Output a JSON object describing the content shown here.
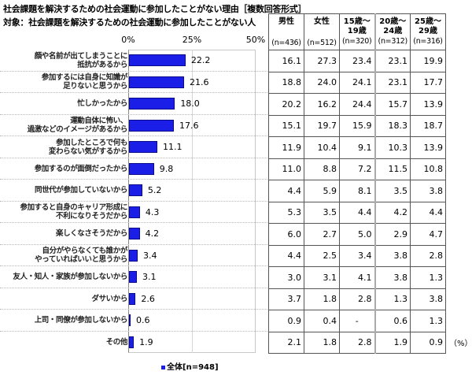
{
  "title": "社会課題を解決するための社会運動に参加したことがない理由［複数回答形式］",
  "subtitle": "対象：社会課題を解決するための社会運動に参加したことがない人",
  "axis_ticks": [
    "0%",
    "25%",
    "50%"
  ],
  "legend": "全体[n=948]",
  "unit": "（%）",
  "table": {
    "headers": [
      {
        "label": "男性",
        "n": "(n=436)"
      },
      {
        "label": "女性",
        "n": "(n=512)"
      },
      {
        "label": "15歳～19歳",
        "n": "(n=320)"
      },
      {
        "label": "20歳～24歳",
        "n": "(n=312)"
      },
      {
        "label": "25歳～29歳",
        "n": "(n=316)"
      }
    ]
  },
  "colors": {
    "bar": "#1a1ee6",
    "bar_border": "#0b0c8a"
  },
  "chart_data": {
    "type": "bar",
    "orientation": "horizontal",
    "title": "社会課題を解決するための社会運動に参加したことがない理由［複数回答形式］",
    "subtitle": "対象：社会課題を解決するための社会運動に参加したことがない人",
    "xlim": [
      0,
      50
    ],
    "xticks": [
      "0%",
      "25%",
      "50%"
    ],
    "legend": [
      "全体[n=948]"
    ],
    "categories": [
      "顔や名前が出てしまうことに抵抗があるから",
      "参加するには自身に知識が足りないと思うから",
      "忙しかったから",
      "運動自体に怖い、過激などのイメージがあるから",
      "参加したところで何も変わらない気がするから",
      "参加するのが面倒だったから",
      "同世代が参加していないから",
      "参加すると自身のキャリア形成に不利になりそうだから",
      "楽しくなさそうだから",
      "自分がやらなくても誰かがやっていればいいと思うから",
      "友人・知人・家族が参加しないから",
      "ダサいから",
      "上司・同僚が参加しないから",
      "その他"
    ],
    "labels_display": [
      [
        "顔や名前が出てしまうことに",
        "抵抗があるから"
      ],
      [
        "参加するには自身に知識が",
        "足りないと思うから"
      ],
      [
        "忙しかったから"
      ],
      [
        "運動自体に怖い、",
        "過激などのイメージがあるから"
      ],
      [
        "参加したところで何も",
        "変わらない気がするから"
      ],
      [
        "参加するのが面倒だったから"
      ],
      [
        "同世代が参加していないから"
      ],
      [
        "参加すると自身のキャリア形成に",
        "不利になりそうだから"
      ],
      [
        "楽しくなさそうだから"
      ],
      [
        "自分がやらなくても誰かが",
        "やっていればいいと思うから"
      ],
      [
        "友人・知人・家族が参加しないから"
      ],
      [
        "ダサいから"
      ],
      [
        "上司・同僚が参加しないから"
      ],
      [
        "その他"
      ]
    ],
    "series": [
      {
        "name": "全体[n=948]",
        "values": [
          22.2,
          21.6,
          18.0,
          17.6,
          11.1,
          9.8,
          5.2,
          4.3,
          4.2,
          3.4,
          3.1,
          2.6,
          0.6,
          1.9
        ],
        "display": [
          "22.2",
          "21.6",
          "18.0",
          "17.6",
          "11.1",
          "9.8",
          "5.2",
          "4.3",
          "4.2",
          "3.4",
          "3.1",
          "2.6",
          "0.6",
          "1.9"
        ]
      }
    ],
    "table": {
      "columns": [
        "男性(n=436)",
        "女性(n=512)",
        "15歳～19歳(n=320)",
        "20歳～24歳(n=312)",
        "25歳～29歳(n=316)"
      ],
      "rows": [
        [
          "16.1",
          "27.3",
          "23.4",
          "23.1",
          "19.9"
        ],
        [
          "18.8",
          "24.0",
          "24.1",
          "23.1",
          "17.7"
        ],
        [
          "20.2",
          "16.2",
          "24.4",
          "15.7",
          "13.9"
        ],
        [
          "15.1",
          "19.7",
          "15.9",
          "18.3",
          "18.7"
        ],
        [
          "11.9",
          "10.4",
          "9.1",
          "10.3",
          "13.9"
        ],
        [
          "11.0",
          "8.8",
          "7.2",
          "11.5",
          "10.8"
        ],
        [
          "4.4",
          "5.9",
          "8.1",
          "3.5",
          "3.8"
        ],
        [
          "5.3",
          "3.5",
          "4.4",
          "4.2",
          "4.4"
        ],
        [
          "6.0",
          "2.7",
          "5.0",
          "2.9",
          "4.7"
        ],
        [
          "4.4",
          "2.5",
          "3.4",
          "3.8",
          "2.8"
        ],
        [
          "3.0",
          "3.1",
          "4.1",
          "3.8",
          "1.3"
        ],
        [
          "3.7",
          "1.8",
          "2.8",
          "1.3",
          "3.8"
        ],
        [
          "0.9",
          "0.4",
          "-",
          "0.6",
          "1.3"
        ],
        [
          "2.1",
          "1.8",
          "2.8",
          "1.9",
          "0.9"
        ]
      ]
    }
  }
}
